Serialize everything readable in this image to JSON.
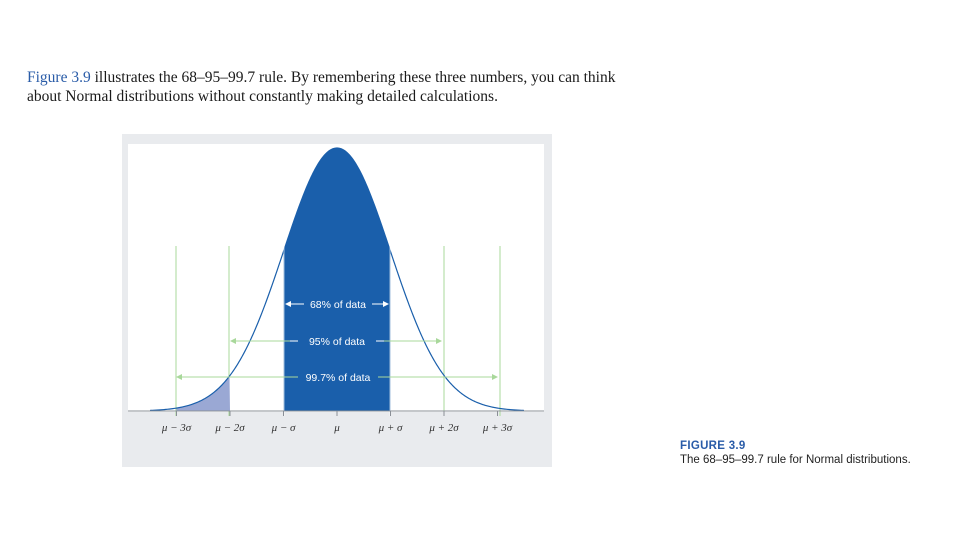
{
  "intro": {
    "ref": "Figure 3.9",
    "line1_rest": " illustrates the 68–95–99.7 rule. By remembering these three numbers, you can think",
    "line2": "about Normal distributions without constantly making detailed calculations."
  },
  "figure": {
    "labels": {
      "p68": "68% of data",
      "p95": "95% of data",
      "p997": "99.7% of data"
    },
    "axis_ticks": [
      "μ − 3σ",
      "μ − 2σ",
      "μ − σ",
      "μ",
      "μ + σ",
      "μ + 2σ",
      "μ + 3σ"
    ],
    "colors": {
      "dark_fill": "#1a5fab",
      "light_fill": "#9aa8d4",
      "guide_lines": "#a9d89b",
      "panel_bg": "#e9ebee"
    }
  },
  "caption": {
    "title": "FIGURE 3.9",
    "text": "The 68–95–99.7 rule for Normal distributions."
  }
}
